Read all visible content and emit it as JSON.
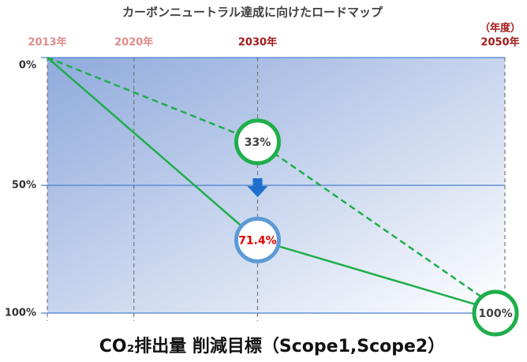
{
  "chart_data": {
    "type": "line",
    "title": "カーボンニュートラル達成に向けたロードマップ",
    "caption": "CO₂排出量 削減目標（Scope1,Scope2）",
    "xlabel": "（年度）",
    "x": [
      2013,
      2030,
      2050
    ],
    "xlim": [
      2013,
      2050
    ],
    "xticks": [
      {
        "value": 2013,
        "label": "2013年"
      },
      {
        "value": 2020,
        "label": "2020年"
      },
      {
        "value": 2030,
        "label": "2030年"
      },
      {
        "value": 2050,
        "label": "2050年"
      }
    ],
    "xtick_colors": [
      "#e08a8a",
      "#e08a8a",
      "#a31a1a",
      "#a31a1a"
    ],
    "ylim": [
      0,
      100
    ],
    "inverted": true,
    "yticks": [
      {
        "value": 0,
        "label": "0%"
      },
      {
        "value": 50,
        "label": "50%"
      },
      {
        "value": 100,
        "label": "100%"
      }
    ],
    "series": [
      {
        "color": "#1fae4b",
        "style": "dashed",
        "values": [
          0,
          33,
          100
        ],
        "value_labels": [
          null,
          "33%",
          null
        ],
        "marker_colors": [
          null,
          "#1fae4b",
          null
        ],
        "label_colors": [
          null,
          "#404040",
          null
        ]
      },
      {
        "color": "#1fae4b",
        "style": "solid",
        "values": [
          0,
          71.4,
          100
        ],
        "value_labels": [
          null,
          "71.4%",
          "100%"
        ],
        "marker_colors": [
          null,
          "#5b9bd5",
          "#1fae4b"
        ],
        "label_colors": [
          null,
          "#e00000",
          "#404040"
        ]
      }
    ]
  }
}
